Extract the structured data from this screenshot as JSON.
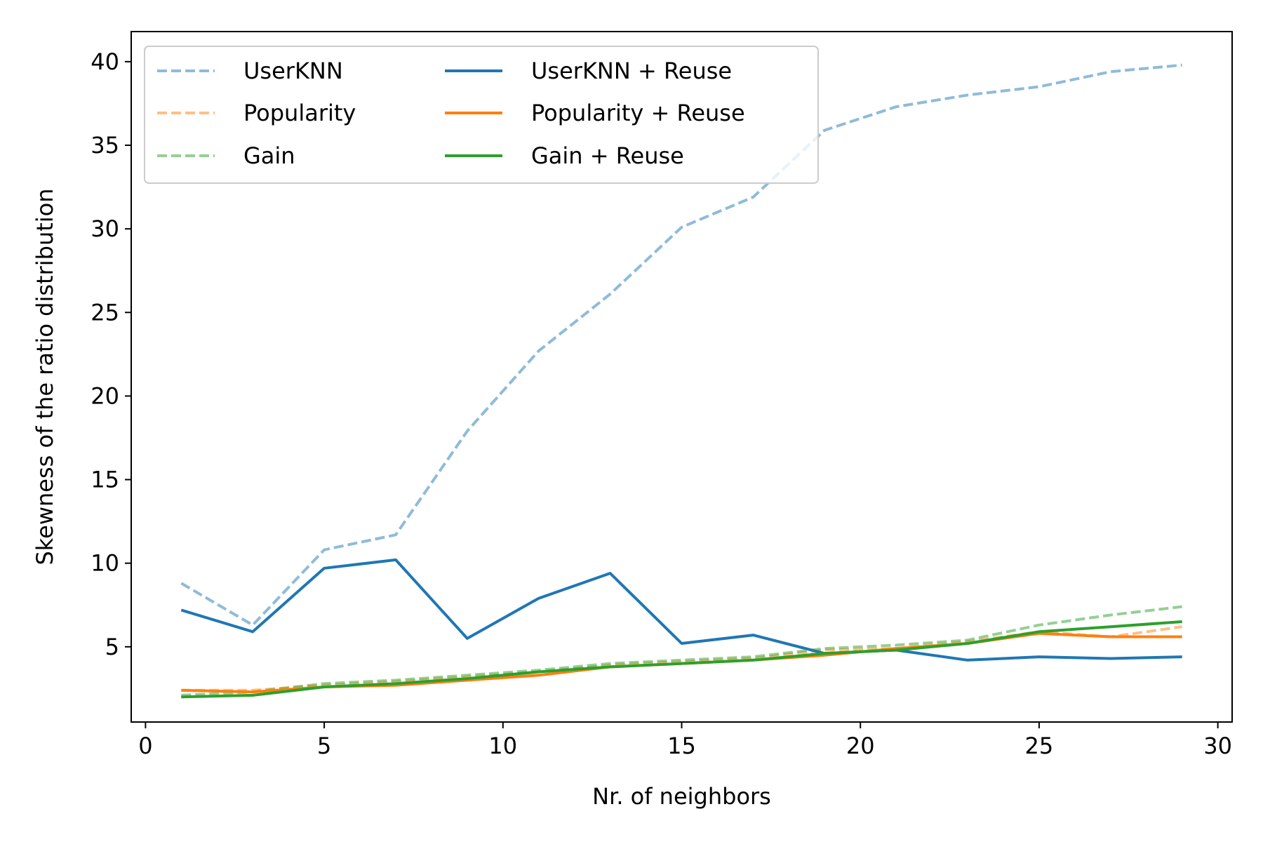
{
  "chart_data": {
    "type": "line",
    "xlabel": "Nr. of neighbors",
    "ylabel": "Skewness of the ratio distribution",
    "xlim": [
      -0.4,
      30.4
    ],
    "ylim": [
      0.5,
      41.8
    ],
    "xticks": [
      0,
      5,
      10,
      15,
      20,
      25,
      30
    ],
    "yticks": [
      5,
      10,
      15,
      20,
      25,
      30,
      35,
      40
    ],
    "grid": false,
    "legend_position": "top-left",
    "legend_columns": 2,
    "x": [
      1,
      3,
      5,
      7,
      9,
      11,
      13,
      15,
      17,
      19,
      21,
      23,
      25,
      27,
      29
    ],
    "series": [
      {
        "name": "UserKNN",
        "color": "#1f77b4",
        "style": "dashed",
        "alpha": 0.5,
        "values": [
          8.8,
          6.3,
          10.8,
          11.7,
          17.9,
          22.7,
          26.1,
          30.1,
          31.9,
          35.9,
          37.3,
          38.0,
          38.5,
          39.4,
          39.8
        ]
      },
      {
        "name": "Popularity",
        "color": "#ff7f0e",
        "style": "dashed",
        "alpha": 0.5,
        "values": [
          2.4,
          2.4,
          2.7,
          2.9,
          3.2,
          3.5,
          3.9,
          4.1,
          4.3,
          4.8,
          4.9,
          5.3,
          5.9,
          5.6,
          6.2
        ]
      },
      {
        "name": "Gain",
        "color": "#2ca02c",
        "style": "dashed",
        "alpha": 0.5,
        "values": [
          2.1,
          2.3,
          2.8,
          3.0,
          3.3,
          3.6,
          4.0,
          4.2,
          4.4,
          4.9,
          5.1,
          5.4,
          6.3,
          6.9,
          7.4
        ]
      },
      {
        "name": "UserKNN + Reuse",
        "color": "#1f77b4",
        "style": "solid",
        "alpha": 1,
        "values": [
          7.2,
          5.9,
          9.7,
          10.2,
          5.5,
          7.9,
          9.4,
          5.2,
          5.7,
          4.6,
          4.8,
          4.2,
          4.4,
          4.3,
          4.4
        ]
      },
      {
        "name": "Popularity + Reuse",
        "color": "#ff7f0e",
        "style": "solid",
        "alpha": 1,
        "values": [
          2.4,
          2.3,
          2.6,
          2.7,
          3.0,
          3.3,
          3.8,
          4.0,
          4.2,
          4.5,
          4.9,
          5.2,
          5.8,
          5.6,
          5.6
        ]
      },
      {
        "name": "Gain + Reuse",
        "color": "#2ca02c",
        "style": "solid",
        "alpha": 1,
        "values": [
          2.0,
          2.1,
          2.6,
          2.8,
          3.1,
          3.5,
          3.8,
          4.0,
          4.2,
          4.6,
          4.8,
          5.2,
          5.9,
          6.2,
          6.5
        ]
      }
    ]
  }
}
